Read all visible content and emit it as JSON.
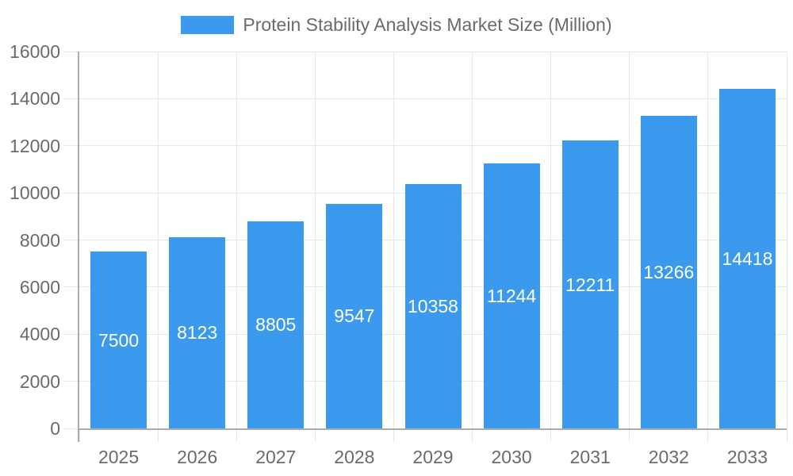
{
  "legend": {
    "label": "Protein Stability Analysis Market Size (Million)"
  },
  "chart_data": {
    "type": "bar",
    "title": "Protein Stability Analysis Market Size (Million)",
    "categories": [
      "2025",
      "2026",
      "2027",
      "2028",
      "2029",
      "2030",
      "2031",
      "2032",
      "2033"
    ],
    "series": [
      {
        "name": "Protein Stability Analysis Market Size (Million)",
        "values": [
          7500,
          8123,
          8805,
          9547,
          10358,
          11244,
          12211,
          13266,
          14418
        ]
      }
    ],
    "value_labels": [
      "7500",
      "8123",
      "8805",
      "9547",
      "10358",
      "11244",
      "12211",
      "13266",
      "14418"
    ],
    "xlabel": "",
    "ylabel": "",
    "ylim": [
      0,
      16000
    ],
    "ytick_step": 2000,
    "yticks": [
      "0",
      "2000",
      "4000",
      "6000",
      "8000",
      "10000",
      "12000",
      "14000",
      "16000"
    ],
    "grid": true,
    "legend_position": "top-center",
    "colors": {
      "bar": "#3B9AED",
      "value_label": "#FFFFFF",
      "axis_text": "#6B6B6B",
      "grid": "#E8E8E8",
      "axis_line": "#ABABAB",
      "background": "#FFFFFF"
    }
  }
}
